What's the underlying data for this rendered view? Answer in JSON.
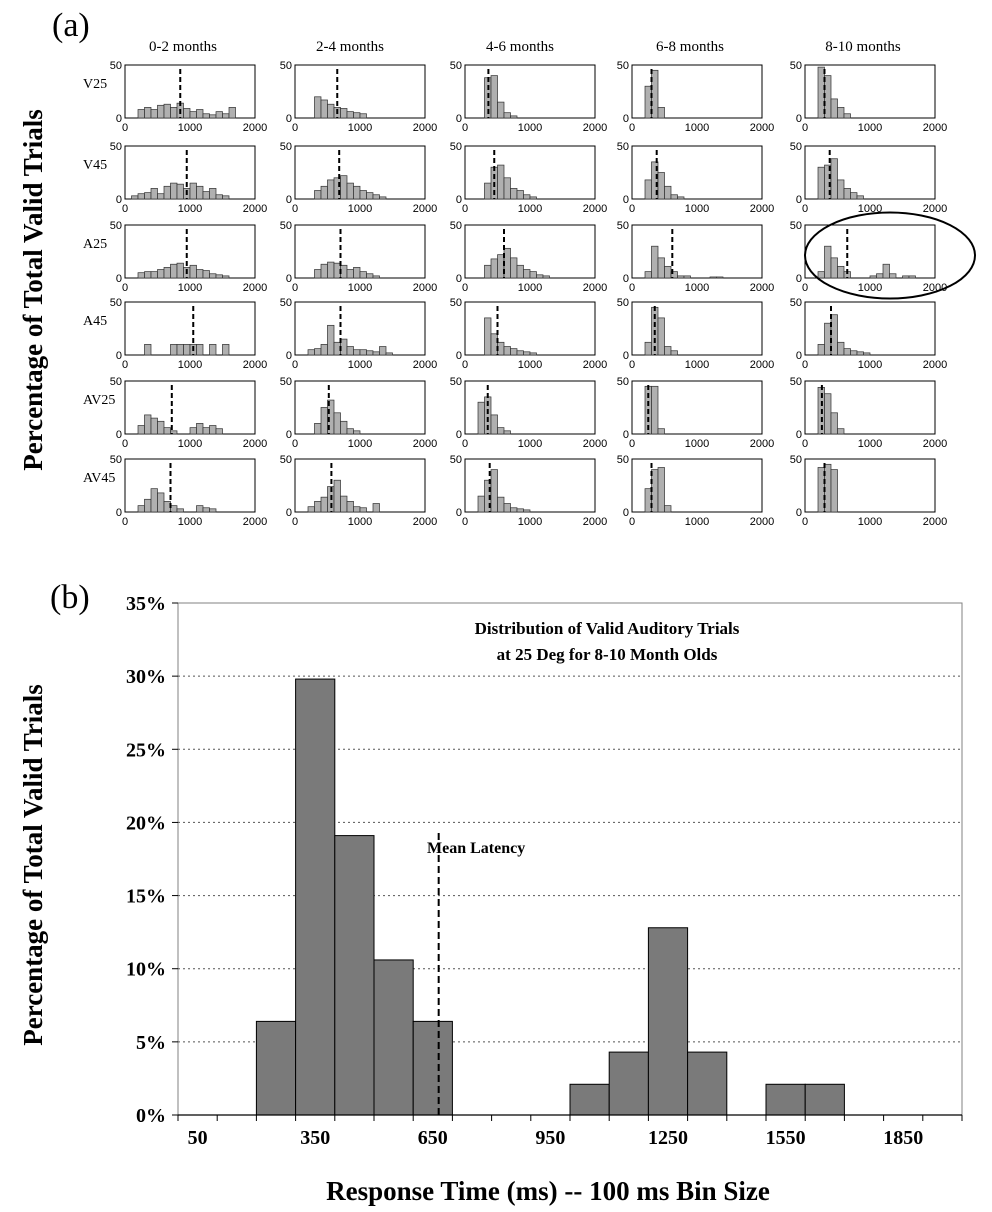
{
  "panel_a": {
    "label": "(a)",
    "ylabel": "Percentage of Total Valid Trials",
    "yticks": [
      "0",
      "50"
    ],
    "xticks": [
      "0",
      "1000",
      "2000"
    ],
    "circled_cell": {
      "row": 2,
      "col": 4
    }
  },
  "panel_b": {
    "label": "(b)",
    "title_line1": "Distribution of Valid Auditory Trials",
    "title_line2": "at 25 Deg for 8-10 Month Olds",
    "ylabel": "Percentage of Total Valid Trials",
    "xlabel": "Response Time (ms) -- 100 ms Bin Size",
    "annotation": "Mean Latency",
    "yticks": [
      "0%",
      "5%",
      "10%",
      "15%",
      "20%",
      "25%",
      "30%",
      "35%"
    ],
    "xticks": [
      "50",
      "350",
      "650",
      "950",
      "1250",
      "1550",
      "1850"
    ]
  },
  "chart_data": [
    {
      "type": "bar",
      "panel": "(a)",
      "layout": "grid of histograms",
      "columns": [
        "0-2 months",
        "2-4 months",
        "4-6 months",
        "6-8 months",
        "8-10 months"
      ],
      "rows": [
        "V25",
        "V45",
        "A25",
        "A45",
        "AV25",
        "AV45"
      ],
      "ylim": [
        0,
        50
      ],
      "xlim": [
        0,
        2000
      ],
      "bin_width": 100,
      "cells": [
        [
          {
            "start": 200,
            "values": [
              8,
              10,
              8,
              12,
              13,
              10,
              14,
              9,
              6,
              8,
              4,
              3,
              6,
              4,
              10
            ],
            "mean": 850
          },
          {
            "start": 300,
            "values": [
              20,
              17,
              13,
              10,
              9,
              6,
              5,
              4
            ],
            "mean": 650
          },
          {
            "start": 300,
            "values": [
              38,
              40,
              15,
              5,
              2
            ],
            "mean": 360
          },
          {
            "start": 200,
            "values": [
              30,
              45,
              10
            ],
            "mean": 300
          },
          {
            "start": 200,
            "values": [
              48,
              40,
              18,
              10,
              4
            ],
            "mean": 300
          }
        ],
        [
          {
            "start": 100,
            "values": [
              3,
              5,
              6,
              10,
              5,
              12,
              15,
              14,
              10,
              15,
              12,
              7,
              10,
              4,
              3
            ],
            "mean": 950
          },
          {
            "start": 300,
            "values": [
              8,
              12,
              18,
              20,
              22,
              15,
              12,
              8,
              6,
              4,
              2
            ],
            "mean": 680
          },
          {
            "start": 300,
            "values": [
              15,
              30,
              32,
              20,
              10,
              8,
              4,
              2
            ],
            "mean": 450
          },
          {
            "start": 200,
            "values": [
              18,
              35,
              25,
              12,
              4,
              2
            ],
            "mean": 380
          },
          {
            "start": 200,
            "values": [
              30,
              32,
              38,
              18,
              10,
              6,
              3
            ],
            "mean": 380
          }
        ],
        [
          {
            "start": 200,
            "values": [
              5,
              6,
              6,
              8,
              10,
              13,
              14,
              10,
              12,
              8,
              7,
              4,
              3,
              2
            ],
            "mean": 950
          },
          {
            "start": 300,
            "values": [
              8,
              13,
              15,
              14,
              12,
              8,
              10,
              6,
              4,
              2
            ],
            "mean": 700
          },
          {
            "start": 300,
            "values": [
              12,
              18,
              22,
              28,
              19,
              12,
              8,
              6,
              3,
              2
            ],
            "mean": 600
          },
          {
            "start": 200,
            "values": [
              6,
              30,
              19,
              11,
              6,
              2,
              2,
              0,
              0,
              0,
              1,
              1
            ],
            "mean": 620
          },
          {
            "start": 200,
            "values": [
              6,
              30,
              19,
              11,
              6,
              0,
              0,
              0,
              2,
              4,
              13,
              4,
              0,
              2,
              2
            ],
            "mean": 650
          }
        ],
        [
          {
            "start": 200,
            "values": [
              0,
              10,
              0,
              0,
              0,
              10,
              10,
              10,
              10,
              10,
              0,
              10,
              0,
              10
            ],
            "mean": 1050
          },
          {
            "start": 200,
            "values": [
              5,
              6,
              10,
              28,
              12,
              15,
              8,
              5,
              5,
              4,
              3,
              8,
              2
            ],
            "mean": 700
          },
          {
            "start": 300,
            "values": [
              35,
              20,
              12,
              8,
              6,
              4,
              3,
              2
            ],
            "mean": 500
          },
          {
            "start": 200,
            "values": [
              12,
              45,
              35,
              8,
              4
            ],
            "mean": 350
          },
          {
            "start": 200,
            "values": [
              10,
              30,
              38,
              12,
              6,
              4,
              3,
              2
            ],
            "mean": 400
          }
        ],
        [
          {
            "start": 200,
            "values": [
              8,
              18,
              15,
              12,
              6,
              3,
              0,
              0,
              6,
              10,
              6,
              8,
              5
            ],
            "mean": 720
          },
          {
            "start": 300,
            "values": [
              10,
              25,
              32,
              20,
              12,
              5,
              3
            ],
            "mean": 520
          },
          {
            "start": 200,
            "values": [
              30,
              35,
              18,
              6,
              3
            ],
            "mean": 350
          },
          {
            "start": 200,
            "values": [
              45,
              45,
              5
            ],
            "mean": 250
          },
          {
            "start": 200,
            "values": [
              44,
              38,
              20,
              5
            ],
            "mean": 260
          }
        ],
        [
          {
            "start": 200,
            "values": [
              6,
              12,
              22,
              18,
              10,
              6,
              3,
              0,
              0,
              6,
              4,
              3
            ],
            "mean": 700
          },
          {
            "start": 200,
            "values": [
              5,
              10,
              14,
              24,
              30,
              15,
              10,
              5,
              4,
              0,
              8
            ],
            "mean": 560
          },
          {
            "start": 200,
            "values": [
              15,
              30,
              40,
              14,
              8,
              4,
              3,
              2
            ],
            "mean": 380
          },
          {
            "start": 200,
            "values": [
              22,
              40,
              42,
              6
            ],
            "mean": 300
          },
          {
            "start": 200,
            "values": [
              42,
              45,
              40
            ],
            "mean": 300
          }
        ]
      ]
    },
    {
      "type": "bar",
      "panel": "(b)",
      "title": "Distribution of Valid Auditory Trials at 25 Deg for 8-10 Month Olds",
      "xlabel": "Response Time (ms) -- 100 ms Bin Size",
      "ylabel": "Percentage of Total Valid Trials",
      "x": [
        50,
        150,
        250,
        350,
        450,
        550,
        650,
        750,
        850,
        950,
        1050,
        1150,
        1250,
        1350,
        1450,
        1550,
        1650,
        1750,
        1850,
        1950
      ],
      "values": [
        0,
        0,
        6.4,
        29.8,
        19.1,
        10.6,
        6.4,
        0,
        0,
        0,
        2.1,
        4.3,
        12.8,
        4.3,
        0,
        2.1,
        2.1,
        0,
        0,
        0
      ],
      "ylim": [
        0,
        35
      ],
      "xlim": [
        0,
        2000
      ],
      "mean_latency": 665,
      "grid": "horizontal dotted"
    }
  ]
}
